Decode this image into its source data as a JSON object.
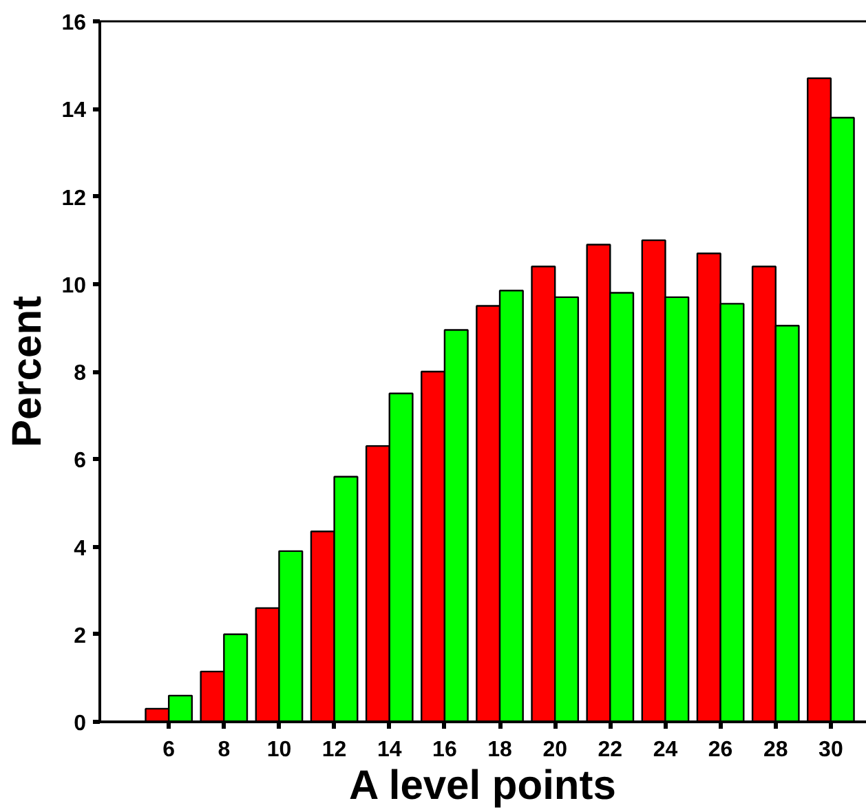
{
  "chart_data": {
    "type": "bar",
    "xlabel": "A level points",
    "ylabel": "Percent",
    "categories": [
      "6",
      "8",
      "10",
      "12",
      "14",
      "16",
      "18",
      "20",
      "22",
      "24",
      "26",
      "28",
      "30"
    ],
    "series": [
      {
        "color": "#ff0000",
        "values": [
          0.3,
          1.15,
          2.6,
          4.35,
          6.3,
          8.0,
          9.5,
          10.4,
          10.9,
          11.0,
          10.7,
          10.4,
          14.7
        ]
      },
      {
        "color": "#00ff00",
        "values": [
          0.6,
          2.0,
          3.9,
          5.6,
          7.5,
          8.95,
          9.85,
          9.7,
          9.8,
          9.7,
          9.55,
          9.05,
          13.8
        ]
      }
    ],
    "ylim": [
      0,
      16
    ],
    "yticks": [
      0,
      2,
      4,
      6,
      8,
      10,
      12,
      14,
      16
    ],
    "grid": false
  }
}
